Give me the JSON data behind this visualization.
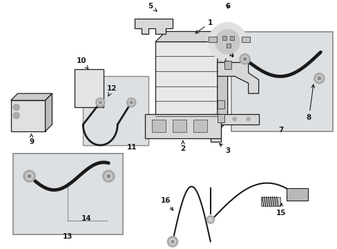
{
  "bg_color": "#ffffff",
  "line_color": "#1a1a1a",
  "box_fill": "#e8eaec",
  "part_fill": "#f2f2f2",
  "figsize": [
    4.89,
    3.6
  ],
  "dpi": 100,
  "inset_box_color": "#888888",
  "label_fontsize": 7.5
}
